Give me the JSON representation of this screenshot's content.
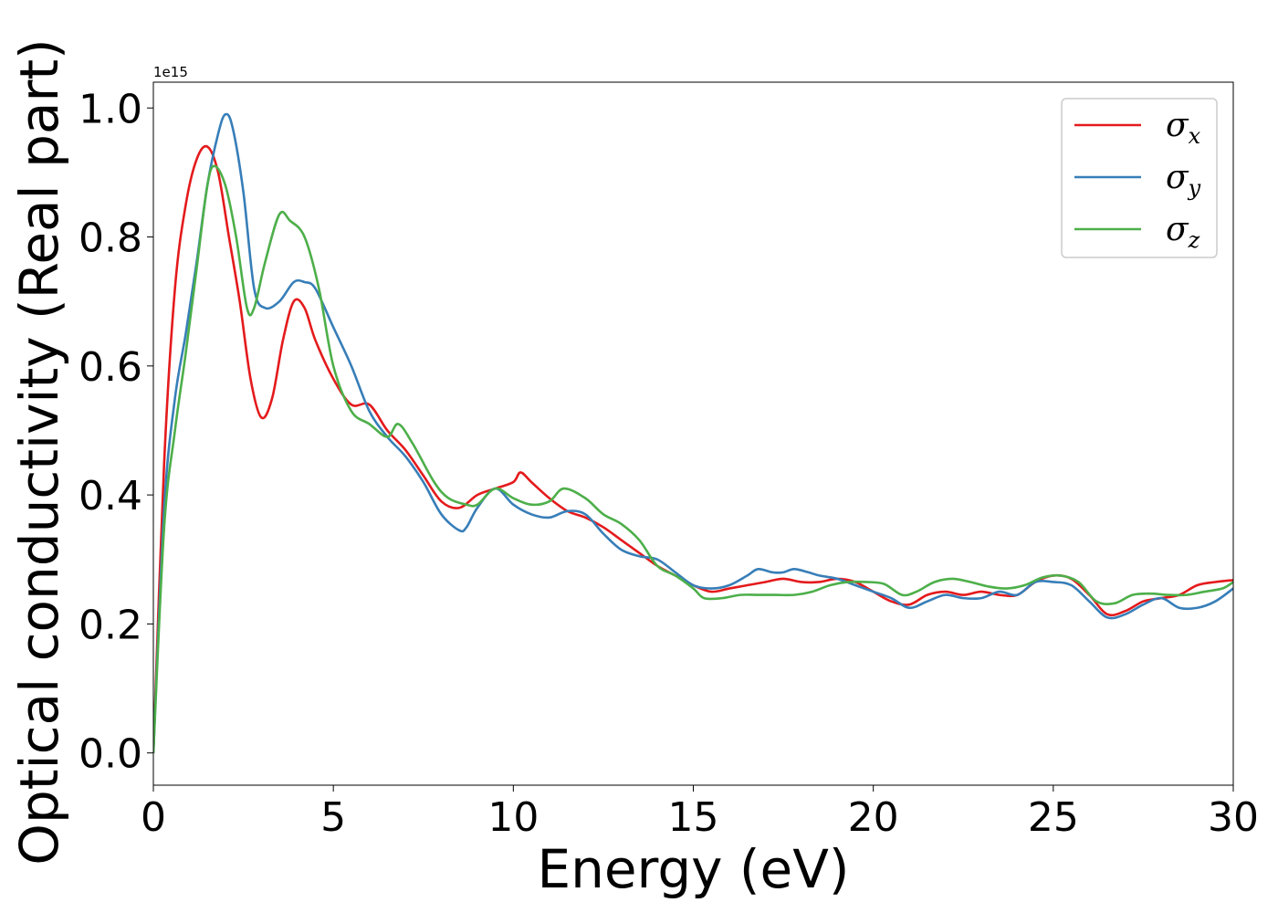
{
  "chart_data": {
    "type": "line",
    "xlabel": "Energy (eV)",
    "ylabel": "Optical conductivity (Real part)",
    "y_offset_text": "1e15",
    "xlim": [
      0,
      30
    ],
    "ylim": [
      -0.05,
      1.04
    ],
    "xticks": [
      0,
      5,
      10,
      15,
      20,
      25,
      30
    ],
    "xtick_labels": [
      "0",
      "5",
      "10",
      "15",
      "20",
      "25",
      "30"
    ],
    "yticks": [
      0.0,
      0.2,
      0.4,
      0.6,
      0.8,
      1.0
    ],
    "ytick_labels": [
      "0.0",
      "0.2",
      "0.4",
      "0.6",
      "0.8",
      "1.0"
    ],
    "grid": false,
    "legend_position": "top-right",
    "series": [
      {
        "name": "σx",
        "symbol": "σ",
        "subscript": "x",
        "color": "#e41a1c",
        "x": [
          0,
          0.3,
          0.6,
          0.9,
          1.2,
          1.5,
          1.8,
          2.1,
          2.4,
          2.7,
          3.0,
          3.3,
          3.6,
          3.9,
          4.2,
          4.5,
          5.0,
          5.5,
          6.0,
          6.5,
          7.0,
          7.5,
          8.0,
          8.5,
          9.0,
          9.5,
          10.0,
          10.2,
          10.5,
          11.0,
          11.5,
          12.0,
          12.5,
          13.0,
          13.5,
          14.0,
          14.5,
          15.0,
          15.5,
          16.0,
          16.5,
          17.0,
          17.5,
          18.0,
          18.5,
          19.0,
          19.5,
          20.0,
          20.5,
          21.0,
          21.5,
          22.0,
          22.5,
          23.0,
          23.5,
          24.0,
          24.5,
          25.0,
          25.5,
          26.0,
          26.5,
          27.0,
          27.5,
          28.0,
          28.5,
          29.0,
          29.5,
          30.0
        ],
        "y": [
          0.0,
          0.45,
          0.72,
          0.85,
          0.92,
          0.94,
          0.9,
          0.8,
          0.7,
          0.58,
          0.52,
          0.55,
          0.64,
          0.7,
          0.69,
          0.64,
          0.58,
          0.54,
          0.54,
          0.5,
          0.47,
          0.43,
          0.39,
          0.38,
          0.4,
          0.41,
          0.42,
          0.435,
          0.42,
          0.395,
          0.375,
          0.365,
          0.35,
          0.33,
          0.31,
          0.29,
          0.275,
          0.26,
          0.25,
          0.255,
          0.26,
          0.265,
          0.27,
          0.265,
          0.265,
          0.27,
          0.265,
          0.25,
          0.235,
          0.23,
          0.245,
          0.25,
          0.245,
          0.25,
          0.245,
          0.245,
          0.265,
          0.275,
          0.27,
          0.245,
          0.215,
          0.22,
          0.235,
          0.24,
          0.245,
          0.26,
          0.265,
          0.268
        ]
      },
      {
        "name": "σy",
        "symbol": "σ",
        "subscript": "y",
        "color": "#377eb8",
        "x": [
          0,
          0.3,
          0.6,
          0.9,
          1.2,
          1.5,
          1.8,
          2.0,
          2.2,
          2.5,
          2.8,
          3.1,
          3.5,
          3.9,
          4.2,
          4.5,
          5.0,
          5.5,
          6.0,
          6.5,
          7.0,
          7.5,
          8.0,
          8.5,
          8.7,
          9.0,
          9.5,
          10.0,
          10.5,
          11.0,
          11.5,
          12.0,
          12.5,
          13.0,
          13.5,
          14.0,
          14.5,
          15.0,
          15.5,
          16.0,
          16.5,
          16.8,
          17.2,
          17.5,
          17.8,
          18.2,
          18.5,
          19.0,
          19.5,
          20.0,
          20.5,
          21.0,
          21.5,
          22.0,
          22.5,
          23.0,
          23.5,
          24.0,
          24.5,
          25.0,
          25.5,
          26.0,
          26.5,
          27.0,
          27.5,
          28.0,
          28.5,
          29.0,
          29.5,
          30.0
        ],
        "y": [
          0.0,
          0.38,
          0.55,
          0.65,
          0.76,
          0.88,
          0.96,
          0.99,
          0.97,
          0.87,
          0.72,
          0.69,
          0.7,
          0.73,
          0.73,
          0.72,
          0.66,
          0.6,
          0.53,
          0.49,
          0.46,
          0.42,
          0.37,
          0.345,
          0.35,
          0.38,
          0.41,
          0.385,
          0.37,
          0.365,
          0.375,
          0.37,
          0.34,
          0.315,
          0.305,
          0.3,
          0.28,
          0.26,
          0.255,
          0.26,
          0.275,
          0.285,
          0.28,
          0.28,
          0.285,
          0.28,
          0.275,
          0.27,
          0.26,
          0.25,
          0.24,
          0.225,
          0.235,
          0.245,
          0.24,
          0.24,
          0.25,
          0.245,
          0.265,
          0.265,
          0.26,
          0.235,
          0.21,
          0.215,
          0.23,
          0.24,
          0.225,
          0.225,
          0.235,
          0.255
        ]
      },
      {
        "name": "σz",
        "symbol": "σ",
        "subscript": "z",
        "color": "#4daf4a",
        "x": [
          0,
          0.3,
          0.6,
          0.9,
          1.2,
          1.5,
          1.7,
          2.0,
          2.3,
          2.6,
          2.8,
          3.1,
          3.5,
          3.8,
          4.2,
          4.6,
          5.0,
          5.5,
          6.0,
          6.5,
          6.8,
          7.2,
          7.8,
          8.2,
          8.7,
          9.0,
          9.5,
          10.0,
          10.5,
          11.0,
          11.4,
          12.0,
          12.5,
          13.0,
          13.5,
          14.0,
          14.5,
          15.0,
          15.3,
          15.8,
          16.3,
          16.8,
          17.3,
          17.8,
          18.3,
          18.8,
          19.3,
          19.8,
          20.3,
          20.8,
          21.2,
          21.7,
          22.2,
          22.7,
          23.2,
          23.7,
          24.2,
          24.7,
          25.2,
          25.7,
          26.2,
          26.7,
          27.2,
          27.7,
          28.2,
          28.7,
          29.2,
          29.7,
          30.0
        ],
        "y": [
          0.0,
          0.35,
          0.5,
          0.62,
          0.75,
          0.88,
          0.91,
          0.88,
          0.8,
          0.69,
          0.69,
          0.76,
          0.835,
          0.825,
          0.8,
          0.72,
          0.6,
          0.53,
          0.51,
          0.49,
          0.51,
          0.48,
          0.42,
          0.395,
          0.385,
          0.385,
          0.41,
          0.395,
          0.385,
          0.39,
          0.41,
          0.395,
          0.37,
          0.355,
          0.33,
          0.29,
          0.275,
          0.255,
          0.24,
          0.24,
          0.245,
          0.245,
          0.245,
          0.245,
          0.25,
          0.26,
          0.265,
          0.265,
          0.262,
          0.245,
          0.25,
          0.265,
          0.27,
          0.265,
          0.258,
          0.255,
          0.26,
          0.272,
          0.275,
          0.265,
          0.235,
          0.232,
          0.245,
          0.247,
          0.245,
          0.245,
          0.25,
          0.255,
          0.265
        ]
      }
    ]
  }
}
